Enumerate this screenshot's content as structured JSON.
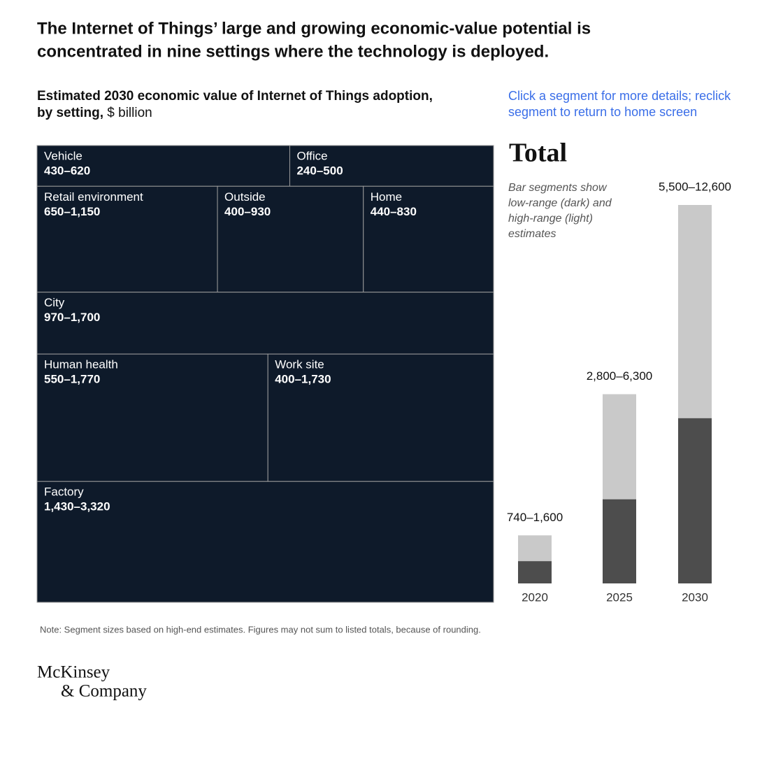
{
  "title": "The Internet of Things’ large and growing economic-value potential is concentrated in nine settings where the technology is deployed.",
  "title_lines": [
    "The Internet of Things’ large and growing economic-value potential is",
    "concentrated in nine settings where the technology is deployed."
  ],
  "instruction_lines": [
    "Click a segment for more details; reclick",
    "segment to return to home screen"
  ],
  "note": "Note: Segment sizes based on high-end estimates. Figures may not sum to listed totals, because of rounding.",
  "logo_lines": [
    "McKinsey",
    "& Company"
  ],
  "chart_data": [
    {
      "type": "treemap",
      "subtitle_lines": [
        "Estimated 2030 economic value of Internet of Things adoption,",
        "by setting,"
      ],
      "unit": "$ billion",
      "color": "#0e1a2a",
      "border_color": "#9a9a9a",
      "categories": [
        "Vehicle",
        "Office",
        "Retail environment",
        "Outside",
        "Home",
        "City",
        "Human health",
        "Work site",
        "Factory"
      ],
      "low": [
        430,
        240,
        650,
        400,
        440,
        970,
        550,
        400,
        1430
      ],
      "high": [
        620,
        500,
        1150,
        930,
        830,
        1700,
        1770,
        1730,
        3320
      ],
      "value_labels": [
        "430–620",
        "240–500",
        "650–1,150",
        "400–930",
        "440–830",
        "970–1,700",
        "550–1,770",
        "400–1,730",
        "1,430–3,320"
      ]
    },
    {
      "type": "overlap_bar",
      "title": "Total",
      "note_lines": [
        "Bar segments show",
        "low-range (dark) and",
        "high-range (light)",
        "estimates"
      ],
      "categories": [
        "2020",
        "2025",
        "2030"
      ],
      "low": [
        740,
        2800,
        5500
      ],
      "high": [
        1600,
        6300,
        12600
      ],
      "value_labels": [
        "740–1,600",
        "2,800–6,300",
        "5,500–12,600"
      ],
      "low_color": "#4d4d4d",
      "high_color": "#c9c9c9"
    }
  ]
}
